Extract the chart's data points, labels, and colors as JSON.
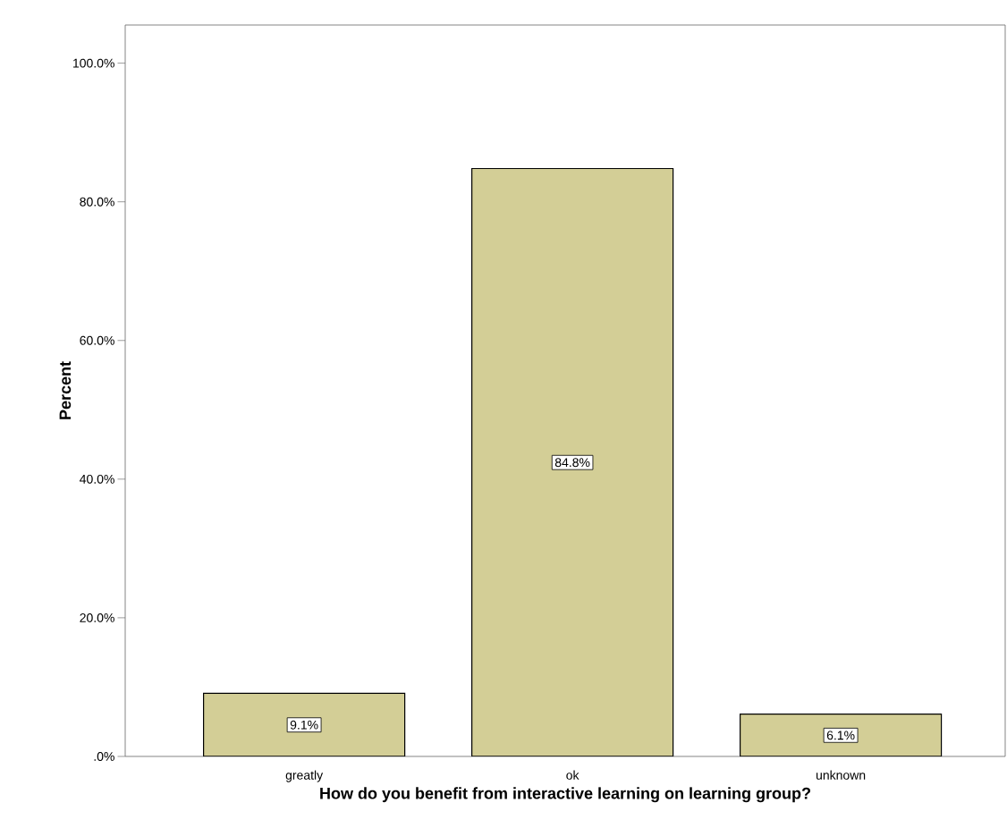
{
  "chart_data": {
    "type": "bar",
    "xlabel": "How do you benefit from interactive learning on learning group?",
    "ylabel": "Percent",
    "categories": [
      "greatly",
      "ok",
      "unknown"
    ],
    "values": [
      9.1,
      84.8,
      6.1
    ],
    "value_labels": [
      "9.1%",
      "84.8%",
      "6.1%"
    ],
    "color": "#d3ce96",
    "ylim": [
      0,
      105.5
    ],
    "yticks": [
      {
        "value": 0,
        "label": ".0%"
      },
      {
        "value": 20,
        "label": "20.0%"
      },
      {
        "value": 40,
        "label": "40.0%"
      },
      {
        "value": 60,
        "label": "60.0%"
      },
      {
        "value": 80,
        "label": "80.0%"
      },
      {
        "value": 100,
        "label": "100.0%"
      }
    ],
    "grid": false
  }
}
